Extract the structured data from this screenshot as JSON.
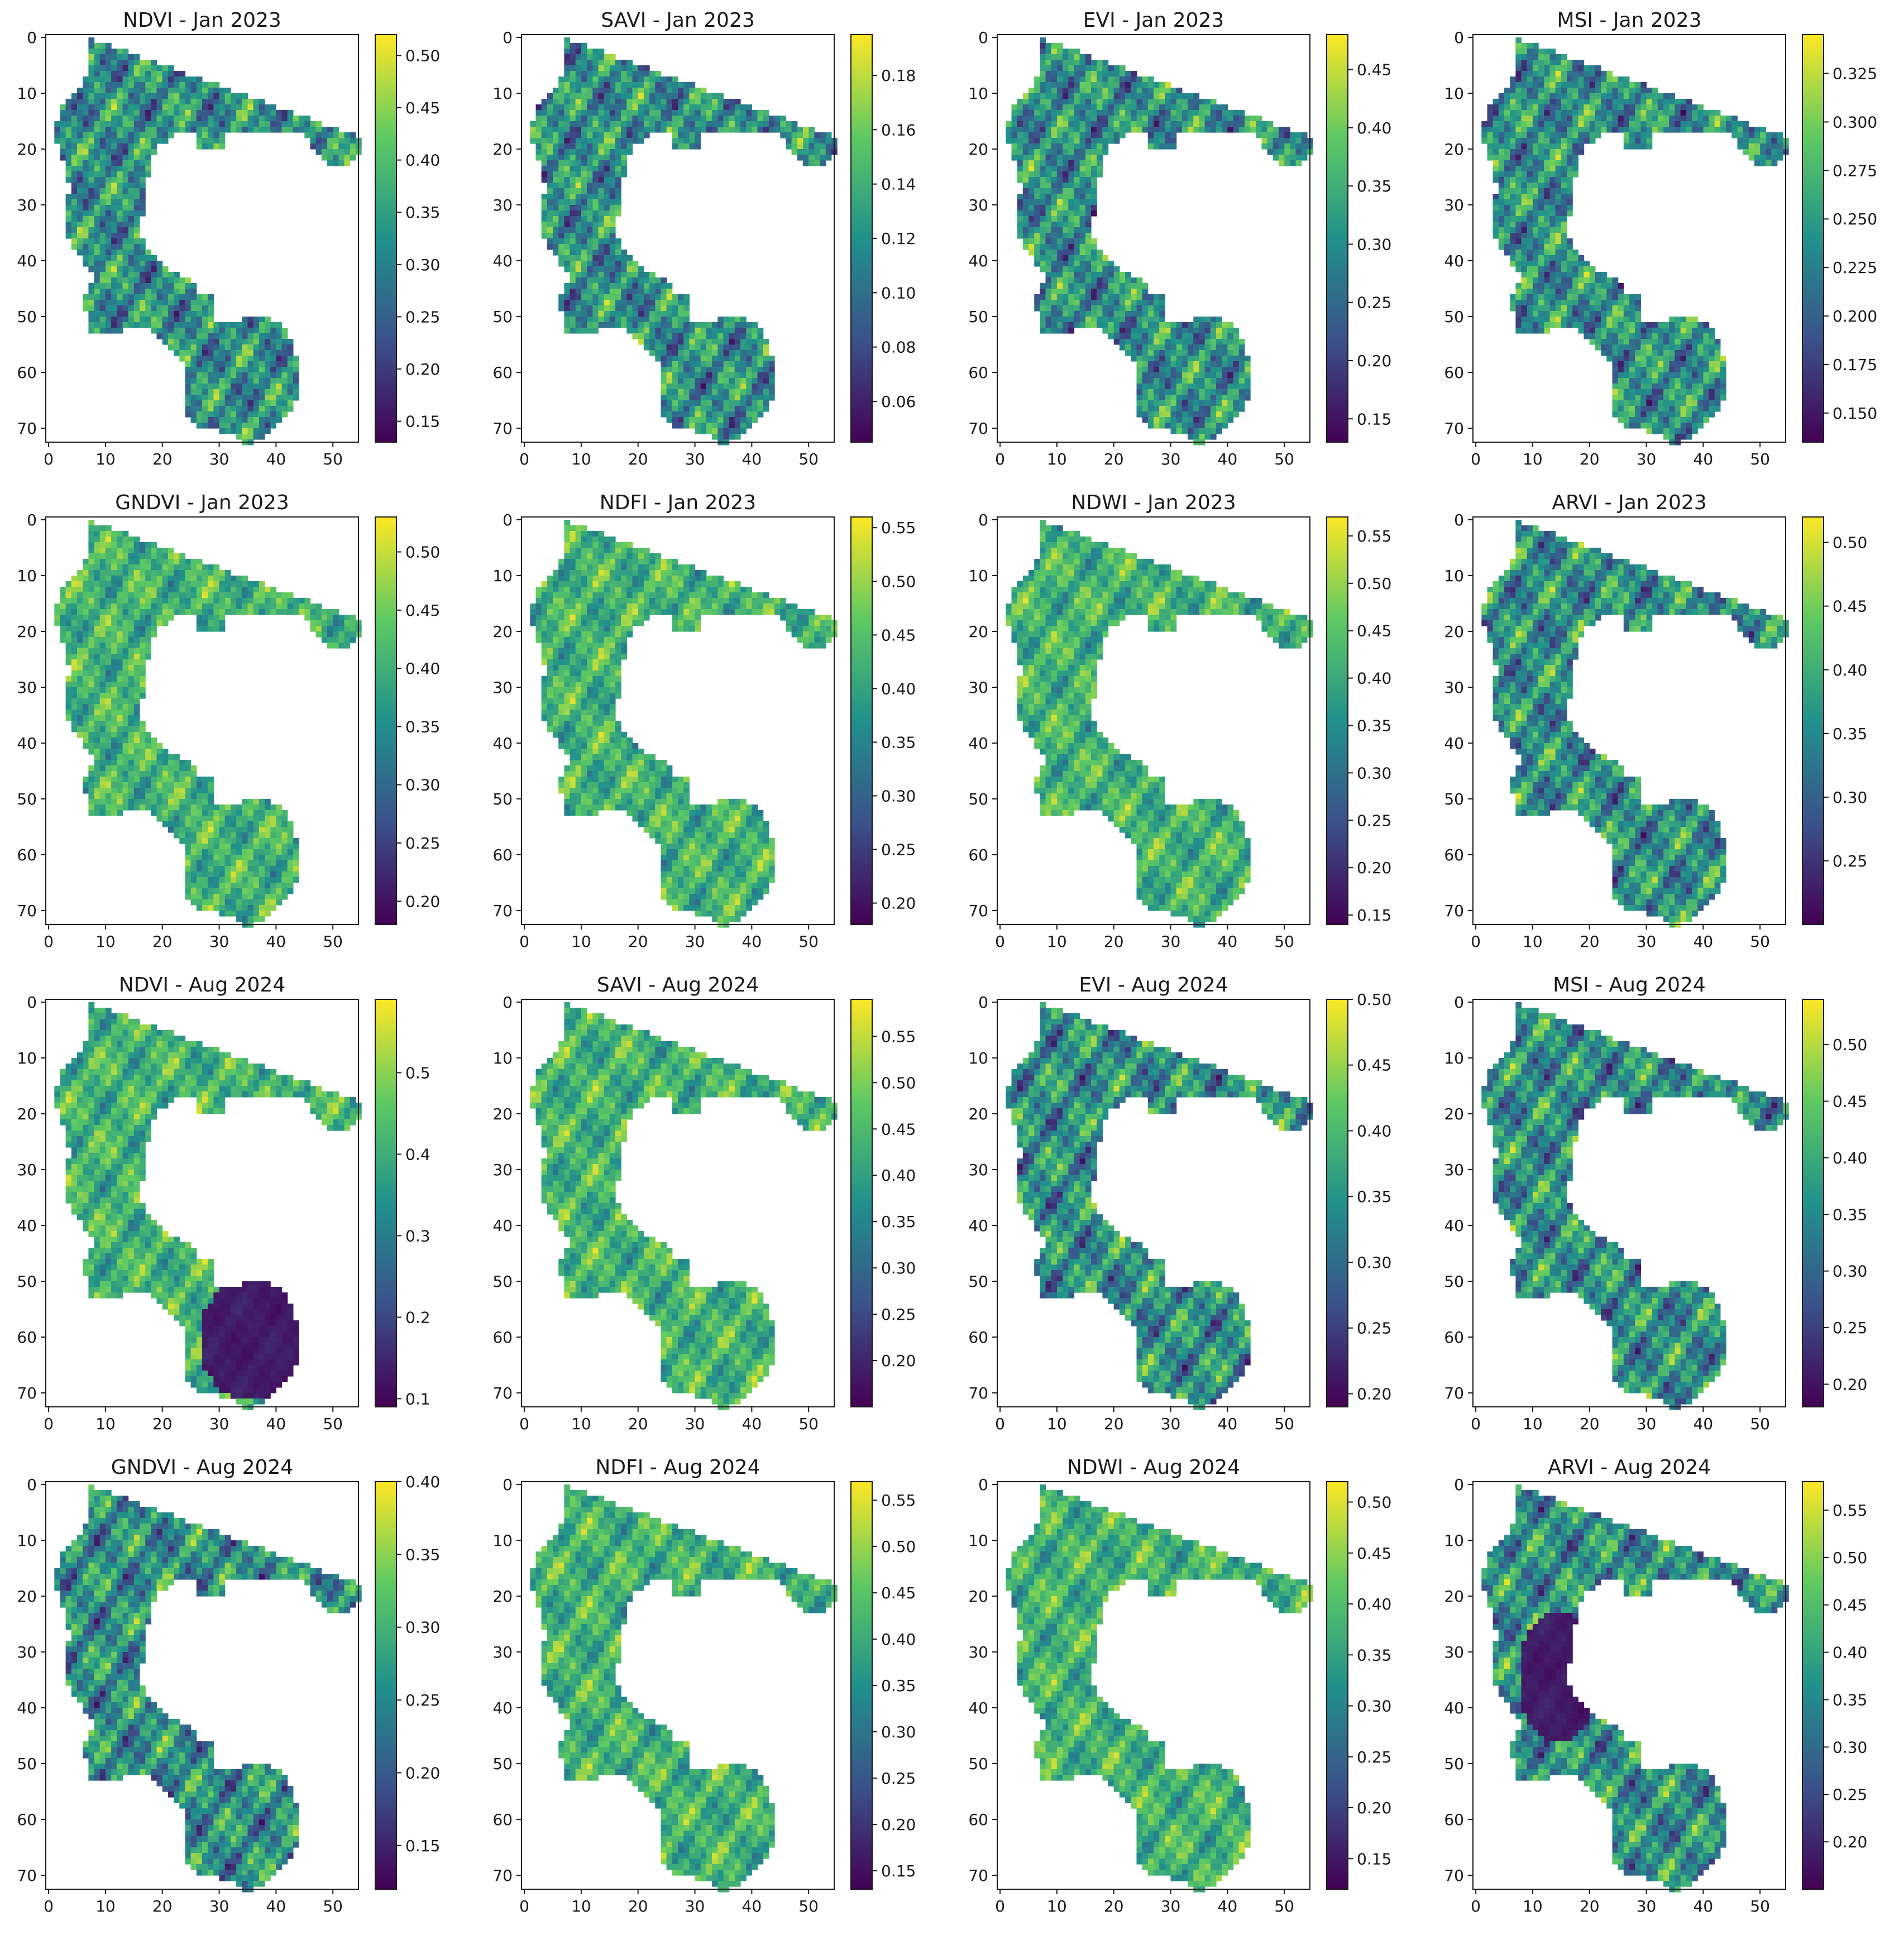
{
  "figure": {
    "layout": "4x4 grid of heatmaps with colorbars",
    "colormap": "viridis",
    "colormap_stops": [
      "#440154",
      "#3b528b",
      "#21918c",
      "#5ec962",
      "#fde725"
    ],
    "background": "#ffffff"
  },
  "chart_data": [
    {
      "type": "heatmap",
      "title": "NDVI - Jan 2023",
      "xticks": [
        0,
        10,
        20,
        30,
        40,
        50
      ],
      "yticks": [
        0,
        10,
        20,
        30,
        40,
        50,
        60,
        70
      ],
      "xlim": [
        0,
        54
      ],
      "ylim": [
        72,
        0
      ],
      "colorbar_ticks": [
        0.15,
        0.2,
        0.25,
        0.3,
        0.35,
        0.4,
        0.45,
        0.5
      ],
      "colorbar_tick_labels": [
        "0.15",
        "0.20",
        "0.25",
        "0.30",
        "0.35",
        "0.40",
        "0.45",
        "0.50"
      ],
      "vmin": 0.13,
      "vmax": 0.52,
      "texture": "mixed"
    },
    {
      "type": "heatmap",
      "title": "SAVI - Jan 2023",
      "xticks": [
        0,
        10,
        20,
        30,
        40,
        50
      ],
      "yticks": [
        0,
        10,
        20,
        30,
        40,
        50,
        60,
        70
      ],
      "xlim": [
        0,
        54
      ],
      "ylim": [
        72,
        0
      ],
      "colorbar_ticks": [
        0.06,
        0.08,
        0.1,
        0.12,
        0.14,
        0.16,
        0.18
      ],
      "colorbar_tick_labels": [
        "0.06",
        "0.08",
        "0.10",
        "0.12",
        "0.14",
        "0.16",
        "0.18"
      ],
      "vmin": 0.045,
      "vmax": 0.195,
      "texture": "mixed"
    },
    {
      "type": "heatmap",
      "title": "EVI - Jan 2023",
      "xticks": [
        0,
        10,
        20,
        30,
        40,
        50
      ],
      "yticks": [
        0,
        10,
        20,
        30,
        40,
        50,
        60,
        70
      ],
      "xlim": [
        0,
        54
      ],
      "ylim": [
        72,
        0
      ],
      "colorbar_ticks": [
        0.15,
        0.2,
        0.25,
        0.3,
        0.35,
        0.4,
        0.45
      ],
      "colorbar_tick_labels": [
        "0.15",
        "0.20",
        "0.25",
        "0.30",
        "0.35",
        "0.40",
        "0.45"
      ],
      "vmin": 0.13,
      "vmax": 0.48,
      "texture": "mixed"
    },
    {
      "type": "heatmap",
      "title": "MSI - Jan 2023",
      "xticks": [
        0,
        10,
        20,
        30,
        40,
        50
      ],
      "yticks": [
        0,
        10,
        20,
        30,
        40,
        50,
        60,
        70
      ],
      "xlim": [
        0,
        54
      ],
      "ylim": [
        72,
        0
      ],
      "colorbar_ticks": [
        0.15,
        0.175,
        0.2,
        0.225,
        0.25,
        0.275,
        0.3,
        0.325
      ],
      "colorbar_tick_labels": [
        "0.150",
        "0.175",
        "0.200",
        "0.225",
        "0.250",
        "0.275",
        "0.300",
        "0.325"
      ],
      "vmin": 0.135,
      "vmax": 0.345,
      "texture": "mixed"
    },
    {
      "type": "heatmap",
      "title": "GNDVI - Jan 2023",
      "xticks": [
        0,
        10,
        20,
        30,
        40,
        50
      ],
      "yticks": [
        0,
        10,
        20,
        30,
        40,
        50,
        60,
        70
      ],
      "xlim": [
        0,
        54
      ],
      "ylim": [
        72,
        0
      ],
      "colorbar_ticks": [
        0.2,
        0.25,
        0.3,
        0.35,
        0.4,
        0.45,
        0.5
      ],
      "colorbar_tick_labels": [
        "0.20",
        "0.25",
        "0.30",
        "0.35",
        "0.40",
        "0.45",
        "0.50"
      ],
      "vmin": 0.18,
      "vmax": 0.53,
      "texture": "high"
    },
    {
      "type": "heatmap",
      "title": "NDFI - Jan 2023",
      "xticks": [
        0,
        10,
        20,
        30,
        40,
        50
      ],
      "yticks": [
        0,
        10,
        20,
        30,
        40,
        50,
        60,
        70
      ],
      "xlim": [
        0,
        54
      ],
      "ylim": [
        72,
        0
      ],
      "colorbar_ticks": [
        0.2,
        0.25,
        0.3,
        0.35,
        0.4,
        0.45,
        0.5,
        0.55
      ],
      "colorbar_tick_labels": [
        "0.20",
        "0.25",
        "0.30",
        "0.35",
        "0.40",
        "0.45",
        "0.50",
        "0.55"
      ],
      "vmin": 0.18,
      "vmax": 0.56,
      "texture": "high"
    },
    {
      "type": "heatmap",
      "title": "NDWI - Jan 2023",
      "xticks": [
        0,
        10,
        20,
        30,
        40,
        50
      ],
      "yticks": [
        0,
        10,
        20,
        30,
        40,
        50,
        60,
        70
      ],
      "xlim": [
        0,
        54
      ],
      "ylim": [
        72,
        0
      ],
      "colorbar_ticks": [
        0.15,
        0.2,
        0.25,
        0.3,
        0.35,
        0.4,
        0.45,
        0.5,
        0.55
      ],
      "colorbar_tick_labels": [
        "0.15",
        "0.20",
        "0.25",
        "0.30",
        "0.35",
        "0.40",
        "0.45",
        "0.50",
        "0.55"
      ],
      "vmin": 0.14,
      "vmax": 0.57,
      "texture": "high"
    },
    {
      "type": "heatmap",
      "title": "ARVI - Jan 2023",
      "xticks": [
        0,
        10,
        20,
        30,
        40,
        50
      ],
      "yticks": [
        0,
        10,
        20,
        30,
        40,
        50,
        60,
        70
      ],
      "xlim": [
        0,
        54
      ],
      "ylim": [
        72,
        0
      ],
      "colorbar_ticks": [
        0.25,
        0.3,
        0.35,
        0.4,
        0.45,
        0.5
      ],
      "colorbar_tick_labels": [
        "0.25",
        "0.30",
        "0.35",
        "0.40",
        "0.45",
        "0.50"
      ],
      "vmin": 0.2,
      "vmax": 0.52,
      "texture": "mixed"
    },
    {
      "type": "heatmap",
      "title": "NDVI - Aug 2024",
      "xticks": [
        0,
        10,
        20,
        30,
        40,
        50
      ],
      "yticks": [
        0,
        10,
        20,
        30,
        40,
        50,
        60,
        70
      ],
      "xlim": [
        0,
        54
      ],
      "ylim": [
        72,
        0
      ],
      "colorbar_ticks": [
        0.1,
        0.2,
        0.3,
        0.4,
        0.5
      ],
      "colorbar_tick_labels": [
        "0.1",
        "0.2",
        "0.3",
        "0.4",
        "0.5"
      ],
      "vmin": 0.09,
      "vmax": 0.59,
      "texture": "high",
      "low_patch": {
        "cx": 35,
        "cy": 60,
        "rx": 9,
        "ry": 11
      }
    },
    {
      "type": "heatmap",
      "title": "SAVI - Aug 2024",
      "xticks": [
        0,
        10,
        20,
        30,
        40,
        50
      ],
      "yticks": [
        0,
        10,
        20,
        30,
        40,
        50,
        60,
        70
      ],
      "xlim": [
        0,
        54
      ],
      "ylim": [
        72,
        0
      ],
      "colorbar_ticks": [
        0.2,
        0.25,
        0.3,
        0.35,
        0.4,
        0.45,
        0.5,
        0.55
      ],
      "colorbar_tick_labels": [
        "0.20",
        "0.25",
        "0.30",
        "0.35",
        "0.40",
        "0.45",
        "0.50",
        "0.55"
      ],
      "vmin": 0.15,
      "vmax": 0.59,
      "texture": "high"
    },
    {
      "type": "heatmap",
      "title": "EVI - Aug 2024",
      "xticks": [
        0,
        10,
        20,
        30,
        40,
        50
      ],
      "yticks": [
        0,
        10,
        20,
        30,
        40,
        50,
        60,
        70
      ],
      "xlim": [
        0,
        54
      ],
      "ylim": [
        72,
        0
      ],
      "colorbar_ticks": [
        0.2,
        0.25,
        0.3,
        0.35,
        0.4,
        0.45,
        0.5
      ],
      "colorbar_tick_labels": [
        "0.20",
        "0.25",
        "0.30",
        "0.35",
        "0.40",
        "0.45",
        "0.50"
      ],
      "vmin": 0.19,
      "vmax": 0.5,
      "texture": "mixed"
    },
    {
      "type": "heatmap",
      "title": "MSI - Aug 2024",
      "xticks": [
        0,
        10,
        20,
        30,
        40,
        50
      ],
      "yticks": [
        0,
        10,
        20,
        30,
        40,
        50,
        60,
        70
      ],
      "xlim": [
        0,
        54
      ],
      "ylim": [
        72,
        0
      ],
      "colorbar_ticks": [
        0.2,
        0.25,
        0.3,
        0.35,
        0.4,
        0.45,
        0.5
      ],
      "colorbar_tick_labels": [
        "0.20",
        "0.25",
        "0.30",
        "0.35",
        "0.40",
        "0.45",
        "0.50"
      ],
      "vmin": 0.18,
      "vmax": 0.54,
      "texture": "mixed"
    },
    {
      "type": "heatmap",
      "title": "GNDVI - Aug 2024",
      "xticks": [
        0,
        10,
        20,
        30,
        40,
        50
      ],
      "yticks": [
        0,
        10,
        20,
        30,
        40,
        50,
        60,
        70
      ],
      "xlim": [
        0,
        54
      ],
      "ylim": [
        72,
        0
      ],
      "colorbar_ticks": [
        0.15,
        0.2,
        0.25,
        0.3,
        0.35,
        0.4
      ],
      "colorbar_tick_labels": [
        "0.15",
        "0.20",
        "0.25",
        "0.30",
        "0.35",
        "0.40"
      ],
      "vmin": 0.12,
      "vmax": 0.4,
      "texture": "mixed"
    },
    {
      "type": "heatmap",
      "title": "NDFI - Aug 2024",
      "xticks": [
        0,
        10,
        20,
        30,
        40,
        50
      ],
      "yticks": [
        0,
        10,
        20,
        30,
        40,
        50,
        60,
        70
      ],
      "xlim": [
        0,
        54
      ],
      "ylim": [
        72,
        0
      ],
      "colorbar_ticks": [
        0.15,
        0.2,
        0.25,
        0.3,
        0.35,
        0.4,
        0.45,
        0.5,
        0.55
      ],
      "colorbar_tick_labels": [
        "0.15",
        "0.20",
        "0.25",
        "0.30",
        "0.35",
        "0.40",
        "0.45",
        "0.50",
        "0.55"
      ],
      "vmin": 0.13,
      "vmax": 0.57,
      "texture": "high"
    },
    {
      "type": "heatmap",
      "title": "NDWI - Aug 2024",
      "xticks": [
        0,
        10,
        20,
        30,
        40,
        50
      ],
      "yticks": [
        0,
        10,
        20,
        30,
        40,
        50,
        60,
        70
      ],
      "xlim": [
        0,
        54
      ],
      "ylim": [
        72,
        0
      ],
      "colorbar_ticks": [
        0.15,
        0.2,
        0.25,
        0.3,
        0.35,
        0.4,
        0.45,
        0.5
      ],
      "colorbar_tick_labels": [
        "0.15",
        "0.20",
        "0.25",
        "0.30",
        "0.35",
        "0.40",
        "0.45",
        "0.50"
      ],
      "vmin": 0.12,
      "vmax": 0.52,
      "texture": "high"
    },
    {
      "type": "heatmap",
      "title": "ARVI - Aug 2024",
      "xticks": [
        0,
        10,
        20,
        30,
        40,
        50
      ],
      "yticks": [
        0,
        10,
        20,
        30,
        40,
        50,
        60,
        70
      ],
      "xlim": [
        0,
        54
      ],
      "ylim": [
        72,
        0
      ],
      "colorbar_ticks": [
        0.2,
        0.25,
        0.3,
        0.35,
        0.4,
        0.45,
        0.5,
        0.55
      ],
      "colorbar_tick_labels": [
        "0.20",
        "0.25",
        "0.30",
        "0.35",
        "0.40",
        "0.45",
        "0.50",
        "0.55"
      ],
      "vmin": 0.15,
      "vmax": 0.58,
      "texture": "mixed",
      "low_patch": {
        "cx": 14,
        "cy": 34,
        "rx": 7,
        "ry": 12
      }
    }
  ]
}
